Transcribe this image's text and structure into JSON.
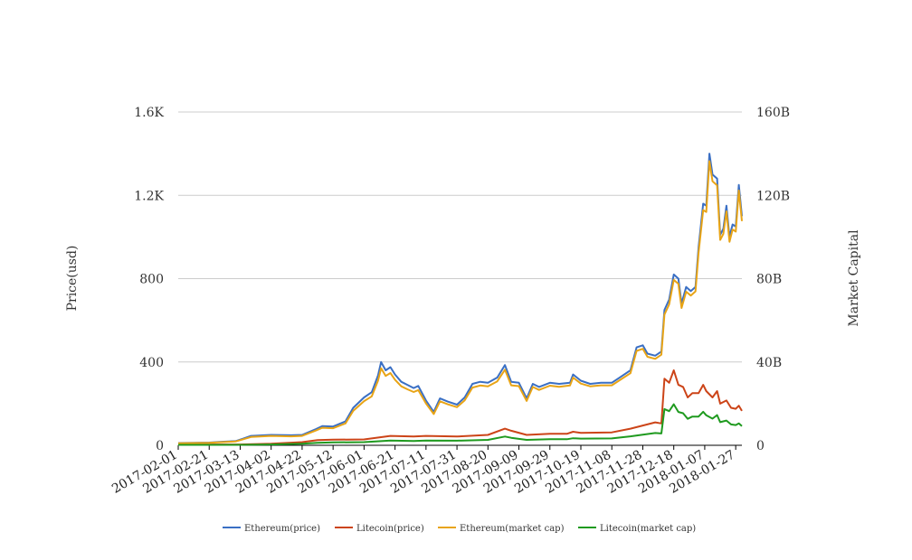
{
  "chart_data": {
    "type": "line",
    "title": "",
    "ylabel_left": "Price(usd)",
    "ylabel_right": "Market Capital",
    "ylim_left": [
      0,
      1600
    ],
    "ylim_right": [
      0,
      160
    ],
    "yticks_left": [
      "0",
      "400",
      "800",
      "1.2K",
      "1.6K"
    ],
    "yticks_right": [
      "0",
      "40B",
      "80B",
      "120B",
      "160B"
    ],
    "xlim": [
      "2017-02-01",
      "2018-01-31"
    ],
    "xticks": [
      "2017-02-01",
      "2017-02-21",
      "2017-03-13",
      "2017-04-02",
      "2017-04-22",
      "2017-05-12",
      "2017-06-01",
      "2017-06-21",
      "2017-07-11",
      "2017-07-31",
      "2017-08-20",
      "2017-09-09",
      "2017-09-29",
      "2017-10-19",
      "2017-11-08",
      "2017-11-28",
      "2017-12-18",
      "2018-01-07",
      "2018-01-27"
    ],
    "grid": true,
    "legend_position": "bottom",
    "series": [
      {
        "name": "Ethereum(price)",
        "axis": "left",
        "color": "#3a6fc4",
        "points": [
          [
            "2017-02-01",
            11
          ],
          [
            "2017-02-21",
            13
          ],
          [
            "2017-03-01",
            17
          ],
          [
            "2017-03-10",
            20
          ],
          [
            "2017-03-15",
            32
          ],
          [
            "2017-03-20",
            45
          ],
          [
            "2017-04-02",
            50
          ],
          [
            "2017-04-15",
            48
          ],
          [
            "2017-04-22",
            50
          ],
          [
            "2017-05-01",
            78
          ],
          [
            "2017-05-05",
            92
          ],
          [
            "2017-05-12",
            90
          ],
          [
            "2017-05-20",
            115
          ],
          [
            "2017-05-25",
            180
          ],
          [
            "2017-06-01",
            230
          ],
          [
            "2017-06-06",
            255
          ],
          [
            "2017-06-10",
            335
          ],
          [
            "2017-06-12",
            400
          ],
          [
            "2017-06-15",
            360
          ],
          [
            "2017-06-18",
            375
          ],
          [
            "2017-06-21",
            340
          ],
          [
            "2017-06-25",
            305
          ],
          [
            "2017-06-29",
            290
          ],
          [
            "2017-07-03",
            275
          ],
          [
            "2017-07-06",
            285
          ],
          [
            "2017-07-11",
            215
          ],
          [
            "2017-07-16",
            160
          ],
          [
            "2017-07-20",
            225
          ],
          [
            "2017-07-25",
            210
          ],
          [
            "2017-07-31",
            195
          ],
          [
            "2017-08-05",
            230
          ],
          [
            "2017-08-10",
            295
          ],
          [
            "2017-08-15",
            305
          ],
          [
            "2017-08-20",
            300
          ],
          [
            "2017-08-26",
            325
          ],
          [
            "2017-08-31",
            385
          ],
          [
            "2017-09-04",
            305
          ],
          [
            "2017-09-09",
            300
          ],
          [
            "2017-09-14",
            225
          ],
          [
            "2017-09-18",
            295
          ],
          [
            "2017-09-22",
            280
          ],
          [
            "2017-09-29",
            300
          ],
          [
            "2017-10-05",
            295
          ],
          [
            "2017-10-12",
            300
          ],
          [
            "2017-10-14",
            340
          ],
          [
            "2017-10-19",
            310
          ],
          [
            "2017-10-25",
            295
          ],
          [
            "2017-11-01",
            300
          ],
          [
            "2017-11-08",
            300
          ],
          [
            "2017-11-14",
            330
          ],
          [
            "2017-11-20",
            360
          ],
          [
            "2017-11-24",
            470
          ],
          [
            "2017-11-28",
            480
          ],
          [
            "2017-12-01",
            440
          ],
          [
            "2017-12-06",
            430
          ],
          [
            "2017-12-10",
            450
          ],
          [
            "2017-12-12",
            650
          ],
          [
            "2017-12-15",
            700
          ],
          [
            "2017-12-18",
            820
          ],
          [
            "2017-12-21",
            800
          ],
          [
            "2017-12-23",
            680
          ],
          [
            "2017-12-26",
            760
          ],
          [
            "2017-12-29",
            740
          ],
          [
            "2018-01-01",
            760
          ],
          [
            "2018-01-03",
            950
          ],
          [
            "2018-01-06",
            1160
          ],
          [
            "2018-01-08",
            1150
          ],
          [
            "2018-01-10",
            1400
          ],
          [
            "2018-01-12",
            1300
          ],
          [
            "2018-01-15",
            1280
          ],
          [
            "2018-01-17",
            1010
          ],
          [
            "2018-01-19",
            1040
          ],
          [
            "2018-01-21",
            1150
          ],
          [
            "2018-01-23",
            1000
          ],
          [
            "2018-01-25",
            1060
          ],
          [
            "2018-01-27",
            1050
          ],
          [
            "2018-01-29",
            1250
          ],
          [
            "2018-01-31",
            1100
          ]
        ]
      },
      {
        "name": "Litecoin(price)",
        "axis": "left",
        "color": "#cc4418",
        "points": [
          [
            "2017-02-01",
            4
          ],
          [
            "2017-03-13",
            4
          ],
          [
            "2017-04-02",
            8
          ],
          [
            "2017-04-22",
            15
          ],
          [
            "2017-05-02",
            25
          ],
          [
            "2017-05-12",
            27
          ],
          [
            "2017-06-01",
            28
          ],
          [
            "2017-06-18",
            45
          ],
          [
            "2017-07-03",
            42
          ],
          [
            "2017-07-11",
            45
          ],
          [
            "2017-07-31",
            42
          ],
          [
            "2017-08-20",
            50
          ],
          [
            "2017-08-31",
            80
          ],
          [
            "2017-09-04",
            70
          ],
          [
            "2017-09-14",
            50
          ],
          [
            "2017-09-29",
            55
          ],
          [
            "2017-10-10",
            55
          ],
          [
            "2017-10-14",
            65
          ],
          [
            "2017-10-19",
            60
          ],
          [
            "2017-11-08",
            62
          ],
          [
            "2017-11-20",
            80
          ],
          [
            "2017-11-28",
            95
          ],
          [
            "2017-12-06",
            110
          ],
          [
            "2017-12-10",
            105
          ],
          [
            "2017-12-12",
            320
          ],
          [
            "2017-12-15",
            300
          ],
          [
            "2017-12-18",
            360
          ],
          [
            "2017-12-21",
            290
          ],
          [
            "2017-12-24",
            280
          ],
          [
            "2017-12-27",
            230
          ],
          [
            "2017-12-30",
            250
          ],
          [
            "2018-01-03",
            250
          ],
          [
            "2018-01-06",
            290
          ],
          [
            "2018-01-08",
            260
          ],
          [
            "2018-01-12",
            230
          ],
          [
            "2018-01-15",
            260
          ],
          [
            "2018-01-17",
            200
          ],
          [
            "2018-01-21",
            215
          ],
          [
            "2018-01-24",
            180
          ],
          [
            "2018-01-27",
            175
          ],
          [
            "2018-01-29",
            190
          ],
          [
            "2018-01-31",
            165
          ]
        ]
      },
      {
        "name": "Ethereum(market cap)",
        "axis": "right",
        "color": "#e8a416",
        "points": [
          [
            "2017-02-01",
            1.0
          ],
          [
            "2017-02-21",
            1.2
          ],
          [
            "2017-03-01",
            1.5
          ],
          [
            "2017-03-10",
            1.8
          ],
          [
            "2017-03-15",
            2.9
          ],
          [
            "2017-03-20",
            4.0
          ],
          [
            "2017-04-02",
            4.5
          ],
          [
            "2017-04-15",
            4.3
          ],
          [
            "2017-04-22",
            4.5
          ],
          [
            "2017-05-01",
            7.1
          ],
          [
            "2017-05-05",
            8.4
          ],
          [
            "2017-05-12",
            8.2
          ],
          [
            "2017-05-20",
            10.5
          ],
          [
            "2017-05-25",
            16.5
          ],
          [
            "2017-06-01",
            21.2
          ],
          [
            "2017-06-06",
            23.5
          ],
          [
            "2017-06-10",
            31.0
          ],
          [
            "2017-06-12",
            37.0
          ],
          [
            "2017-06-15",
            33.3
          ],
          [
            "2017-06-18",
            34.7
          ],
          [
            "2017-06-21",
            31.5
          ],
          [
            "2017-06-25",
            28.3
          ],
          [
            "2017-06-29",
            26.9
          ],
          [
            "2017-07-03",
            25.6
          ],
          [
            "2017-07-06",
            26.5
          ],
          [
            "2017-07-11",
            20.1
          ],
          [
            "2017-07-16",
            15.0
          ],
          [
            "2017-07-20",
            21.1
          ],
          [
            "2017-07-25",
            19.7
          ],
          [
            "2017-07-31",
            18.3
          ],
          [
            "2017-08-05",
            21.6
          ],
          [
            "2017-08-10",
            27.7
          ],
          [
            "2017-08-15",
            28.7
          ],
          [
            "2017-08-20",
            28.3
          ],
          [
            "2017-08-26",
            30.7
          ],
          [
            "2017-08-31",
            36.3
          ],
          [
            "2017-09-04",
            28.8
          ],
          [
            "2017-09-09",
            28.4
          ],
          [
            "2017-09-14",
            21.3
          ],
          [
            "2017-09-18",
            28.0
          ],
          [
            "2017-09-22",
            26.6
          ],
          [
            "2017-09-29",
            28.6
          ],
          [
            "2017-10-05",
            28.1
          ],
          [
            "2017-10-12",
            28.7
          ],
          [
            "2017-10-14",
            32.5
          ],
          [
            "2017-10-19",
            29.6
          ],
          [
            "2017-10-25",
            28.3
          ],
          [
            "2017-11-01",
            28.8
          ],
          [
            "2017-11-08",
            28.8
          ],
          [
            "2017-11-14",
            31.7
          ],
          [
            "2017-11-20",
            34.6
          ],
          [
            "2017-11-24",
            45.3
          ],
          [
            "2017-11-28",
            46.3
          ],
          [
            "2017-12-01",
            42.5
          ],
          [
            "2017-12-06",
            41.5
          ],
          [
            "2017-12-10",
            43.5
          ],
          [
            "2017-12-12",
            62.8
          ],
          [
            "2017-12-15",
            67.7
          ],
          [
            "2017-12-18",
            79.4
          ],
          [
            "2017-12-21",
            77.5
          ],
          [
            "2017-12-23",
            65.9
          ],
          [
            "2017-12-26",
            73.7
          ],
          [
            "2017-12-29",
            71.9
          ],
          [
            "2018-01-01",
            73.9
          ],
          [
            "2018-01-03",
            92.4
          ],
          [
            "2018-01-06",
            112.9
          ],
          [
            "2018-01-08",
            112.0
          ],
          [
            "2018-01-10",
            136.4
          ],
          [
            "2018-01-12",
            126.8
          ],
          [
            "2018-01-15",
            124.8
          ],
          [
            "2018-01-17",
            98.6
          ],
          [
            "2018-01-19",
            101.5
          ],
          [
            "2018-01-21",
            112.3
          ],
          [
            "2018-01-23",
            97.7
          ],
          [
            "2018-01-25",
            103.6
          ],
          [
            "2018-01-27",
            102.6
          ],
          [
            "2018-01-29",
            122.3
          ],
          [
            "2018-01-31",
            107.6
          ]
        ]
      },
      {
        "name": "Litecoin(market cap)",
        "axis": "right",
        "color": "#1f9a1f",
        "points": [
          [
            "2017-02-01",
            0.2
          ],
          [
            "2017-03-13",
            0.2
          ],
          [
            "2017-04-02",
            0.4
          ],
          [
            "2017-04-22",
            0.8
          ],
          [
            "2017-05-02",
            1.2
          ],
          [
            "2017-05-12",
            1.4
          ],
          [
            "2017-06-01",
            1.5
          ],
          [
            "2017-06-18",
            2.3
          ],
          [
            "2017-07-03",
            2.1
          ],
          [
            "2017-07-11",
            2.3
          ],
          [
            "2017-07-31",
            2.2
          ],
          [
            "2017-08-20",
            2.6
          ],
          [
            "2017-08-31",
            4.2
          ],
          [
            "2017-09-04",
            3.6
          ],
          [
            "2017-09-14",
            2.6
          ],
          [
            "2017-09-29",
            2.9
          ],
          [
            "2017-10-10",
            2.9
          ],
          [
            "2017-10-14",
            3.4
          ],
          [
            "2017-10-19",
            3.2
          ],
          [
            "2017-11-08",
            3.3
          ],
          [
            "2017-11-20",
            4.3
          ],
          [
            "2017-11-28",
            5.1
          ],
          [
            "2017-12-06",
            5.9
          ],
          [
            "2017-12-10",
            5.7
          ],
          [
            "2017-12-12",
            17.4
          ],
          [
            "2017-12-15",
            16.4
          ],
          [
            "2017-12-18",
            19.7
          ],
          [
            "2017-12-21",
            16.0
          ],
          [
            "2017-12-24",
            15.4
          ],
          [
            "2017-12-27",
            12.7
          ],
          [
            "2017-12-30",
            13.8
          ],
          [
            "2018-01-03",
            13.8
          ],
          [
            "2018-01-06",
            16.1
          ],
          [
            "2018-01-08",
            14.4
          ],
          [
            "2018-01-12",
            12.8
          ],
          [
            "2018-01-15",
            14.5
          ],
          [
            "2018-01-17",
            11.1
          ],
          [
            "2018-01-21",
            11.9
          ],
          [
            "2018-01-24",
            10.0
          ],
          [
            "2018-01-27",
            9.7
          ],
          [
            "2018-01-29",
            10.5
          ],
          [
            "2018-01-31",
            9.2
          ]
        ]
      }
    ]
  }
}
